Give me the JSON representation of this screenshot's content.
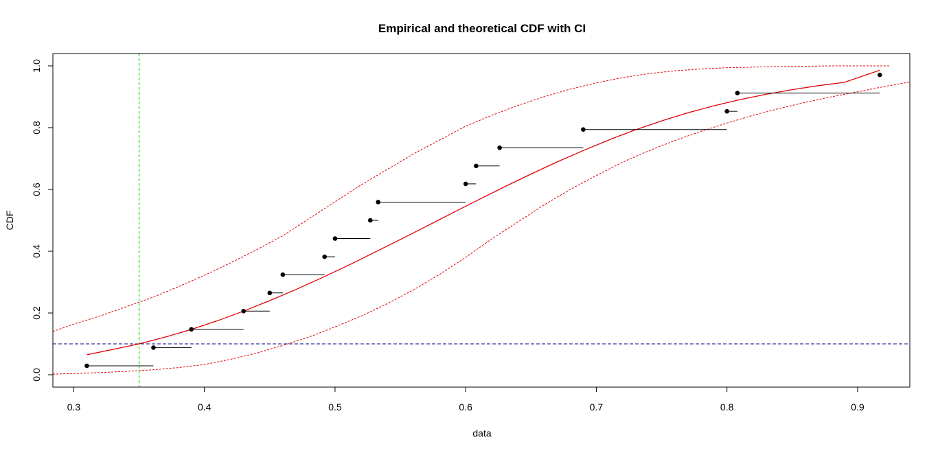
{
  "chart_data": {
    "type": "line",
    "title": "Empirical and theoretical CDF with CI",
    "xlabel": "data",
    "ylabel": "CDF",
    "xlim": [
      0.284,
      0.94
    ],
    "ylim": [
      -0.04,
      1.04
    ],
    "x_ticks": [
      "0.3",
      "0.4",
      "0.5",
      "0.6",
      "0.7",
      "0.8",
      "0.9"
    ],
    "y_ticks": [
      "0.0",
      "0.2",
      "0.4",
      "0.6",
      "0.8",
      "1.0"
    ],
    "grid": false,
    "legend": "none",
    "colors": {
      "points": "#000000",
      "theoretical": "#e00000",
      "ci": "#e00000",
      "vline": "#00dd00",
      "hline": "#000080"
    },
    "empirical": {
      "name": "empirical",
      "points": [
        {
          "x": 0.31,
          "y": 0.029,
          "x_end": 0.361
        },
        {
          "x": 0.361,
          "y": 0.088,
          "x_end": 0.39
        },
        {
          "x": 0.39,
          "y": 0.147,
          "x_end": 0.43
        },
        {
          "x": 0.43,
          "y": 0.206,
          "x_end": 0.45
        },
        {
          "x": 0.45,
          "y": 0.265,
          "x_end": 0.46
        },
        {
          "x": 0.46,
          "y": 0.324,
          "x_end": 0.492
        },
        {
          "x": 0.492,
          "y": 0.382,
          "x_end": 0.5
        },
        {
          "x": 0.5,
          "y": 0.441,
          "x_end": 0.527
        },
        {
          "x": 0.527,
          "y": 0.5,
          "x_end": 0.533
        },
        {
          "x": 0.533,
          "y": 0.559,
          "x_end": 0.6
        },
        {
          "x": 0.6,
          "y": 0.618,
          "x_end": 0.608
        },
        {
          "x": 0.608,
          "y": 0.676,
          "x_end": 0.626
        },
        {
          "x": 0.626,
          "y": 0.735,
          "x_end": 0.69
        },
        {
          "x": 0.69,
          "y": 0.794,
          "x_end": 0.8
        },
        {
          "x": 0.8,
          "y": 0.853,
          "x_end": 0.808
        },
        {
          "x": 0.808,
          "y": 0.912,
          "x_end": 0.917
        },
        {
          "x": 0.917,
          "y": 0.971,
          "x_end": 0.917
        }
      ]
    },
    "theoretical": {
      "x": [
        0.31,
        0.33,
        0.35,
        0.37,
        0.39,
        0.41,
        0.43,
        0.45,
        0.47,
        0.49,
        0.51,
        0.53,
        0.55,
        0.57,
        0.59,
        0.61,
        0.63,
        0.65,
        0.67,
        0.69,
        0.71,
        0.73,
        0.75,
        0.77,
        0.79,
        0.81,
        0.83,
        0.85,
        0.87,
        0.89,
        0.917
      ],
      "y": [
        0.065,
        0.082,
        0.1,
        0.122,
        0.147,
        0.175,
        0.206,
        0.24,
        0.276,
        0.314,
        0.354,
        0.396,
        0.438,
        0.481,
        0.524,
        0.567,
        0.609,
        0.65,
        0.689,
        0.726,
        0.761,
        0.793,
        0.822,
        0.848,
        0.871,
        0.891,
        0.908,
        0.923,
        0.936,
        0.947,
        0.986
      ]
    },
    "ci_upper": {
      "x": [
        0.284,
        0.3,
        0.32,
        0.34,
        0.36,
        0.38,
        0.4,
        0.42,
        0.44,
        0.46,
        0.48,
        0.5,
        0.52,
        0.54,
        0.56,
        0.58,
        0.6,
        0.62,
        0.64,
        0.66,
        0.68,
        0.7,
        0.72,
        0.74,
        0.76,
        0.78,
        0.8,
        0.82,
        0.84,
        0.86,
        0.88,
        0.925
      ],
      "y": [
        0.14,
        0.164,
        0.19,
        0.22,
        0.25,
        0.285,
        0.322,
        0.362,
        0.405,
        0.45,
        0.505,
        0.56,
        0.615,
        0.665,
        0.715,
        0.76,
        0.805,
        0.84,
        0.872,
        0.9,
        0.925,
        0.945,
        0.962,
        0.975,
        0.984,
        0.99,
        0.994,
        0.996,
        0.998,
        0.999,
        1.0,
        1.0
      ]
    },
    "ci_lower": {
      "x": [
        0.284,
        0.3,
        0.32,
        0.34,
        0.36,
        0.38,
        0.4,
        0.42,
        0.44,
        0.46,
        0.48,
        0.5,
        0.52,
        0.54,
        0.56,
        0.58,
        0.6,
        0.62,
        0.64,
        0.66,
        0.68,
        0.7,
        0.72,
        0.74,
        0.76,
        0.78,
        0.8,
        0.82,
        0.84,
        0.86,
        0.88,
        0.9,
        0.92,
        0.94
      ],
      "y": [
        0.002,
        0.004,
        0.007,
        0.011,
        0.016,
        0.023,
        0.033,
        0.05,
        0.07,
        0.095,
        0.122,
        0.155,
        0.19,
        0.23,
        0.275,
        0.325,
        0.38,
        0.44,
        0.495,
        0.55,
        0.6,
        0.645,
        0.688,
        0.725,
        0.758,
        0.788,
        0.815,
        0.84,
        0.862,
        0.882,
        0.9,
        0.916,
        0.933,
        0.948
      ]
    },
    "vline": {
      "x": 0.35
    },
    "hline": {
      "y": 0.1
    }
  }
}
